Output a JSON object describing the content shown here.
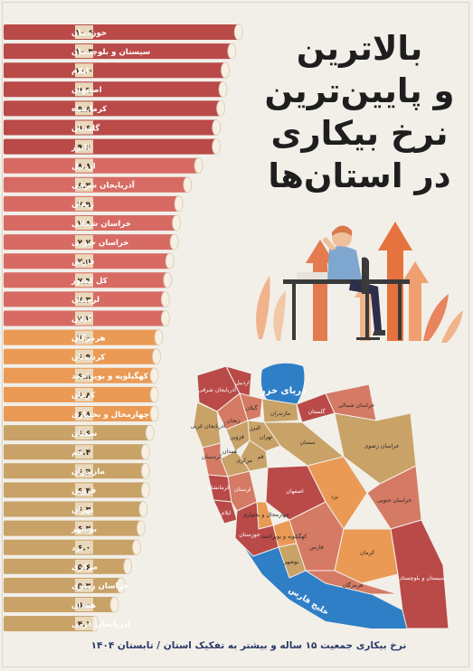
{
  "title_lines": [
    "بالاترین",
    "و پایین‌ترین",
    "نرخ بیکاری",
    "در استان‌ها"
  ],
  "footnote": "نرخ بیکاری جمعیت ۱۵ ساله و بیشتر به تفکیک استان / تابستان ۱۴۰۴",
  "colors": {
    "high": "#b94a48",
    "high_light": "#d76b63",
    "mid": "#ea9a55",
    "low": "#c8a267",
    "value_box": "#e9d8bb",
    "sea": "#2f7fc6"
  },
  "chart_data": {
    "type": "bar",
    "orientation": "horizontal",
    "title": "بالاترین و پایین‌ترین نرخ بیکاری در استان‌ها",
    "categories": [
      "خوزستان",
      "سیستان و بلوچستان",
      "ایلام",
      "اصفهان",
      "کرمانشاه",
      "گلستان",
      "البرز",
      "اردبیل",
      "آذربایجان شرقی",
      "زنجان",
      "خراسان شمالی",
      "خراسان جنوبی",
      "فارس",
      "کل کشور",
      "لرستان",
      "گیلان",
      "هرمزگان",
      "کردستان",
      "کهگیلویه و بویراحمد",
      "کرمان",
      "چهارمحال و بختیاری",
      "سمنان",
      "قم",
      "مازندران",
      "قزوین",
      "تهران",
      "بوشهر",
      "یزد",
      "مرکزی",
      "خراسان رضوی",
      "همدان",
      "آذربایجان غربی"
    ],
    "values": [
      10.6,
      10.3,
      10.0,
      9.9,
      9.8,
      9.6,
      9.6,
      8.8,
      8.3,
      7.9,
      7.8,
      7.7,
      7.5,
      7.4,
      7.3,
      7.3,
      7.0,
      6.9,
      6.8,
      6.8,
      6.8,
      6.6,
      6.4,
      6.4,
      6.4,
      6.3,
      6.2,
      6.0,
      5.6,
      5.3,
      5.0,
      4.1
    ],
    "value_labels": [
      "۱۰.۶",
      "۱۰.۳",
      "۱۰.۰",
      "۹.۹",
      "۹.۸",
      "۹.۶",
      "۹.۶",
      "۸.۸",
      "۸.۳",
      "۷.۹",
      "۷.۸",
      "۷.۷",
      "۷.۵",
      "۷.۴",
      "۷.۳",
      "۷.۳",
      "۷.۰",
      "۶.۹",
      "۶.۸",
      "۶.۸",
      "۶.۸",
      "۶.۶",
      "۶.۴",
      "۶.۴",
      "۶.۴",
      "۶.۳",
      "۶.۲",
      "۶.۰",
      "۵.۶",
      "۵.۳",
      "۵.۰",
      "۴.۱"
    ],
    "xlim": [
      0,
      11
    ],
    "grid": false,
    "legend": "none"
  },
  "map": {
    "sea_labels": [
      "دریای خزر",
      "خلیج فارس"
    ],
    "province_labels": [
      "آذربایجان شرقی",
      "اردبیل",
      "آذربایجان غربی",
      "زنجان",
      "گیلان",
      "مازندران",
      "گلستان",
      "خراسان شمالی",
      "خراسان رضوی",
      "سمنان",
      "تهران",
      "البرز",
      "قزوین",
      "قم",
      "مرکزی",
      "همدان",
      "کردستان",
      "کرمانشاه",
      "ایلام",
      "لرستان",
      "اصفهان",
      "یزد",
      "خراسان جنوبی",
      "چهارمحال و بختیاری",
      "کهگیلویه و بویراحمد",
      "خوزستان",
      "بوشهر",
      "فارس",
      "کرمان",
      "هرمزگان",
      "سیستان و بلوچستان"
    ]
  }
}
